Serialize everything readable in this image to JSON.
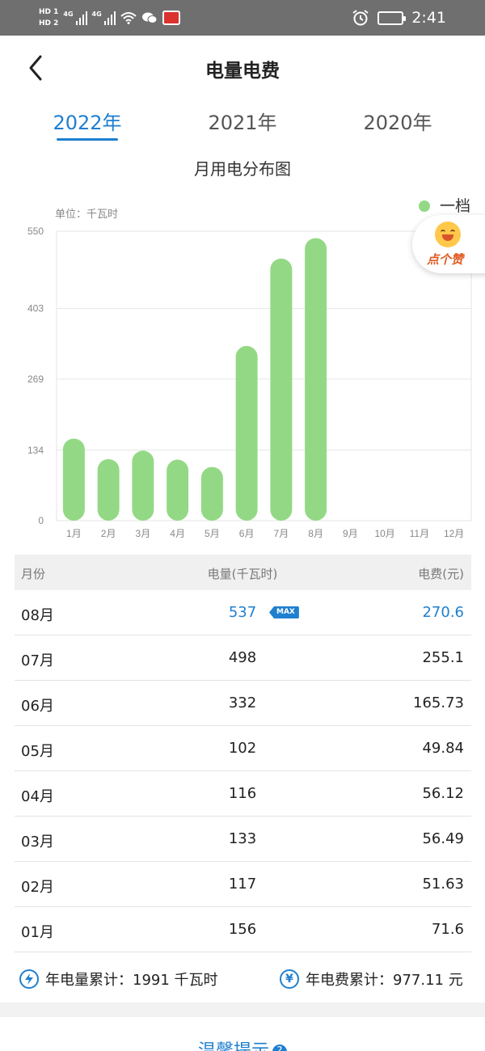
{
  "status_bar": {
    "hd1": "HD 1",
    "hd2": "HD 2",
    "net1": "4G",
    "net2": "4G",
    "time": "2:41"
  },
  "header": {
    "title": "电量电费"
  },
  "tabs": [
    {
      "label": "2022年",
      "active": true
    },
    {
      "label": "2021年",
      "active": false
    },
    {
      "label": "2020年",
      "active": false
    }
  ],
  "chart_title": "月用电分布图",
  "chart_data": {
    "type": "bar",
    "unit_label": "单位：千瓦时",
    "legend": [
      "一档"
    ],
    "legend_position": "top-right",
    "categories": [
      "1月",
      "2月",
      "3月",
      "4月",
      "5月",
      "6月",
      "7月",
      "8月",
      "9月",
      "10月",
      "11月",
      "12月"
    ],
    "series": [
      {
        "name": "一档",
        "values": [
          156,
          117,
          133,
          116,
          102,
          332,
          498,
          537,
          null,
          null,
          null,
          null
        ],
        "color": "#93d985"
      }
    ],
    "yticks": [
      "0",
      "134",
      "269",
      "403",
      "550"
    ],
    "ylim": [
      0,
      550
    ],
    "grid": true
  },
  "like": {
    "label": "点个赞"
  },
  "table": {
    "headers": [
      "月份",
      "电量(千瓦时)",
      "电费(元)"
    ],
    "max_badge": "MAX",
    "rows": [
      {
        "month": "08月",
        "kwh": "537",
        "fee": "270.6"
      },
      {
        "month": "07月",
        "kwh": "498",
        "fee": "255.1"
      },
      {
        "month": "06月",
        "kwh": "332",
        "fee": "165.73"
      },
      {
        "month": "05月",
        "kwh": "102",
        "fee": "49.84"
      },
      {
        "month": "04月",
        "kwh": "116",
        "fee": "56.12"
      },
      {
        "month": "03月",
        "kwh": "133",
        "fee": "56.49"
      },
      {
        "month": "02月",
        "kwh": "117",
        "fee": "51.63"
      },
      {
        "month": "01月",
        "kwh": "156",
        "fee": "71.6"
      }
    ]
  },
  "summary": {
    "kwh_label": "年电量累计：1991 千瓦时",
    "fee_label": "年电费累计：977.11 元",
    "kwh_icon": "lightning-icon",
    "fee_icon": "yuan-icon"
  },
  "tips": {
    "label": "温馨提示",
    "icon": "question-icon"
  },
  "colors": {
    "accent": "#1f7fd0",
    "bar": "#93d985",
    "status_bar": "#6f6f6f"
  }
}
